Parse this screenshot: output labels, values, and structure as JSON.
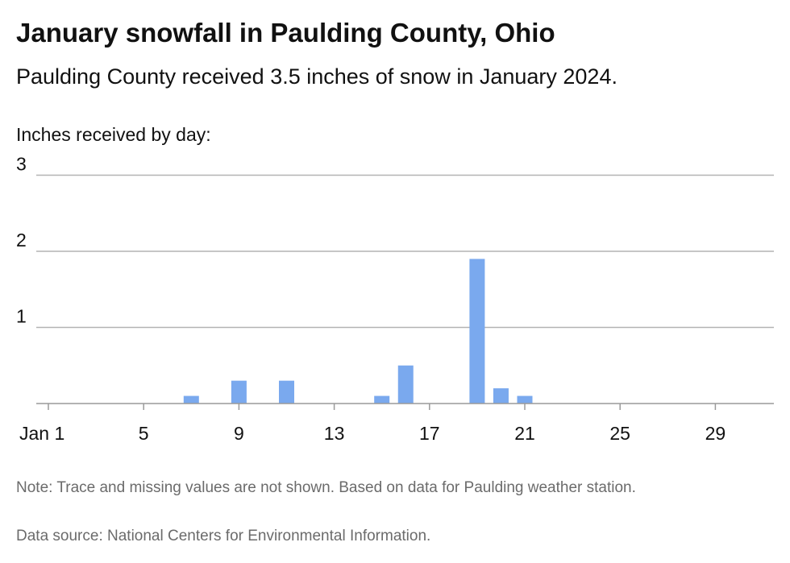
{
  "header": {
    "title": "January snowfall in Paulding County, Ohio",
    "subtitle": "Paulding County received 3.5 inches of snow in January 2024."
  },
  "footer": {
    "note": "Note: Trace and missing values are not shown. Based on data for Paulding weather station.",
    "source": "Data source: National Centers for Environmental Information."
  },
  "chart_data": {
    "type": "bar",
    "title": "January snowfall in Paulding County, Ohio",
    "subtitle": "Paulding County received 3.5 inches of snow in January 2024.",
    "ylabel": "Inches received by day:",
    "xlabel": "",
    "ylim": [
      0,
      3
    ],
    "yticks": [
      1,
      2,
      3
    ],
    "xlim": [
      1,
      31
    ],
    "xticks": [
      {
        "day": 1,
        "label": "Jan 1"
      },
      {
        "day": 5,
        "label": "5"
      },
      {
        "day": 9,
        "label": "9"
      },
      {
        "day": 13,
        "label": "13"
      },
      {
        "day": 17,
        "label": "17"
      },
      {
        "day": 21,
        "label": "21"
      },
      {
        "day": 25,
        "label": "25"
      },
      {
        "day": 29,
        "label": "29"
      }
    ],
    "x": [
      7,
      9,
      11,
      15,
      16,
      19,
      20,
      21
    ],
    "values": [
      0.1,
      0.3,
      0.3,
      0.1,
      0.5,
      1.9,
      0.2,
      0.1
    ],
    "bar_color": "#7aa9ee",
    "grid": true
  }
}
